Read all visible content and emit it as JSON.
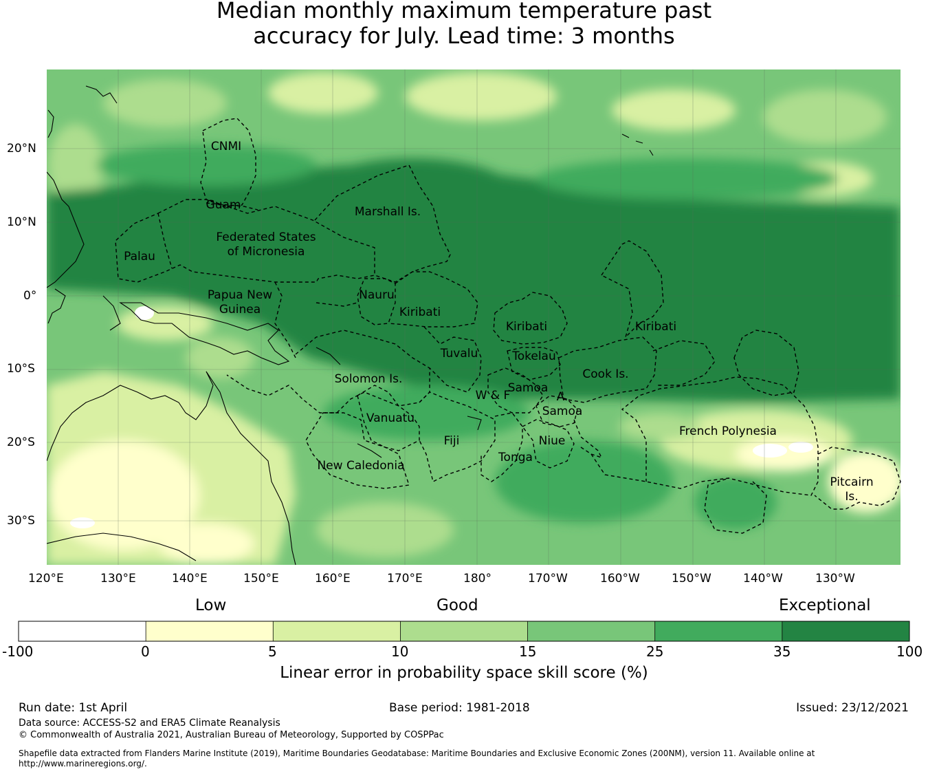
{
  "title_line1": "Median monthly maximum temperature past",
  "title_line2": "accuracy for July. Lead time: 3 months",
  "lat_labels": [
    "20°N",
    "10°N",
    "0°",
    "10°S",
    "20°S",
    "30°S"
  ],
  "lon_labels": [
    "120°E",
    "130°E",
    "140°E",
    "150°E",
    "160°E",
    "170°E",
    "180°",
    "170°W",
    "160°W",
    "150°W",
    "140°W",
    "130°W"
  ],
  "regions": [
    "CNMI",
    "Guam",
    "Marshall Is.",
    "Federated States",
    "of Micronesia",
    "Palau",
    "Papua New",
    "Guinea",
    "Nauru",
    "Kiribati",
    "Kiribati",
    "Kiribati",
    "Tuvalu",
    "Tokelau",
    "Cook Is.",
    "Solomon Is.",
    "Samoa",
    "W & F",
    "A.",
    "Samoa",
    "Vanuatu",
    "Fiji",
    "Niue",
    "Tonga",
    "French Polynesia",
    "New Caledonia",
    "Pitcairn",
    "Is."
  ],
  "legend": {
    "low": "Low",
    "good": "Good",
    "exceptional": "Exceptional",
    "ticks": [
      "-100",
      "0",
      "5",
      "10",
      "15",
      "25",
      "35",
      "100"
    ],
    "colors": [
      "#ffffff",
      "#ffffcc",
      "#d9f0a3",
      "#addd8e",
      "#78c679",
      "#41ab5d",
      "#238443"
    ],
    "axis_label": "Linear error in probability space skill score (%)"
  },
  "footer": {
    "run_date": "Run date: 1st April",
    "base_period": "Base period: 1981-2018",
    "issued": "Issued: 23/12/2021",
    "data_source": "Data source: ACCESS-S2 and ERA5 Climate Reanalysis",
    "copyright": "© Commonwealth of Australia 2021, Australian Bureau of Meteorology, Supported by COSPPac",
    "shapefile": "Shapefile data extracted from Flanders Marine Institute (2019), Maritime Boundaries Geodatabase: Maritime Boundaries and Exclusive Economic Zones (200NM), version 11. Available online at",
    "url": "http://www.marineregions.org/."
  }
}
